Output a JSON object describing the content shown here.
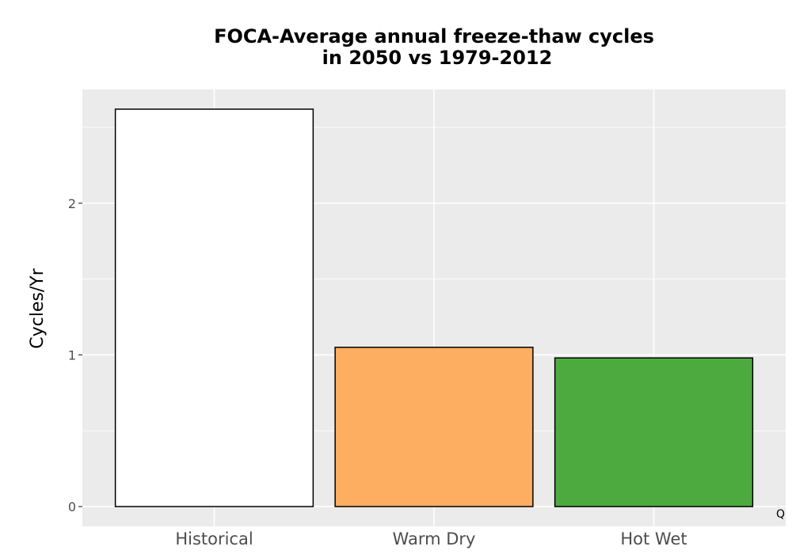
{
  "chart_data": {
    "type": "bar",
    "title_lines": [
      "FOCA-Average annual freeze-thaw cycles",
      "in 2050 vs 1979-2012"
    ],
    "xlabel": "",
    "ylabel": "Cycles/Yr",
    "categories": [
      "Historical",
      "Warm Dry",
      "Hot Wet"
    ],
    "values": [
      2.62,
      1.05,
      0.98
    ],
    "colors": [
      "#ffffff",
      "#fdae61",
      "#4daa3f"
    ],
    "bar_outline": "#000000",
    "yticks": [
      0,
      1,
      2
    ],
    "ytick_labels": [
      "0",
      "1",
      "2"
    ],
    "ylim": [
      -0.13,
      2.75
    ],
    "panel_background": "#ebebeb",
    "grid": true,
    "legend": "none"
  },
  "corner_mark": "Q"
}
